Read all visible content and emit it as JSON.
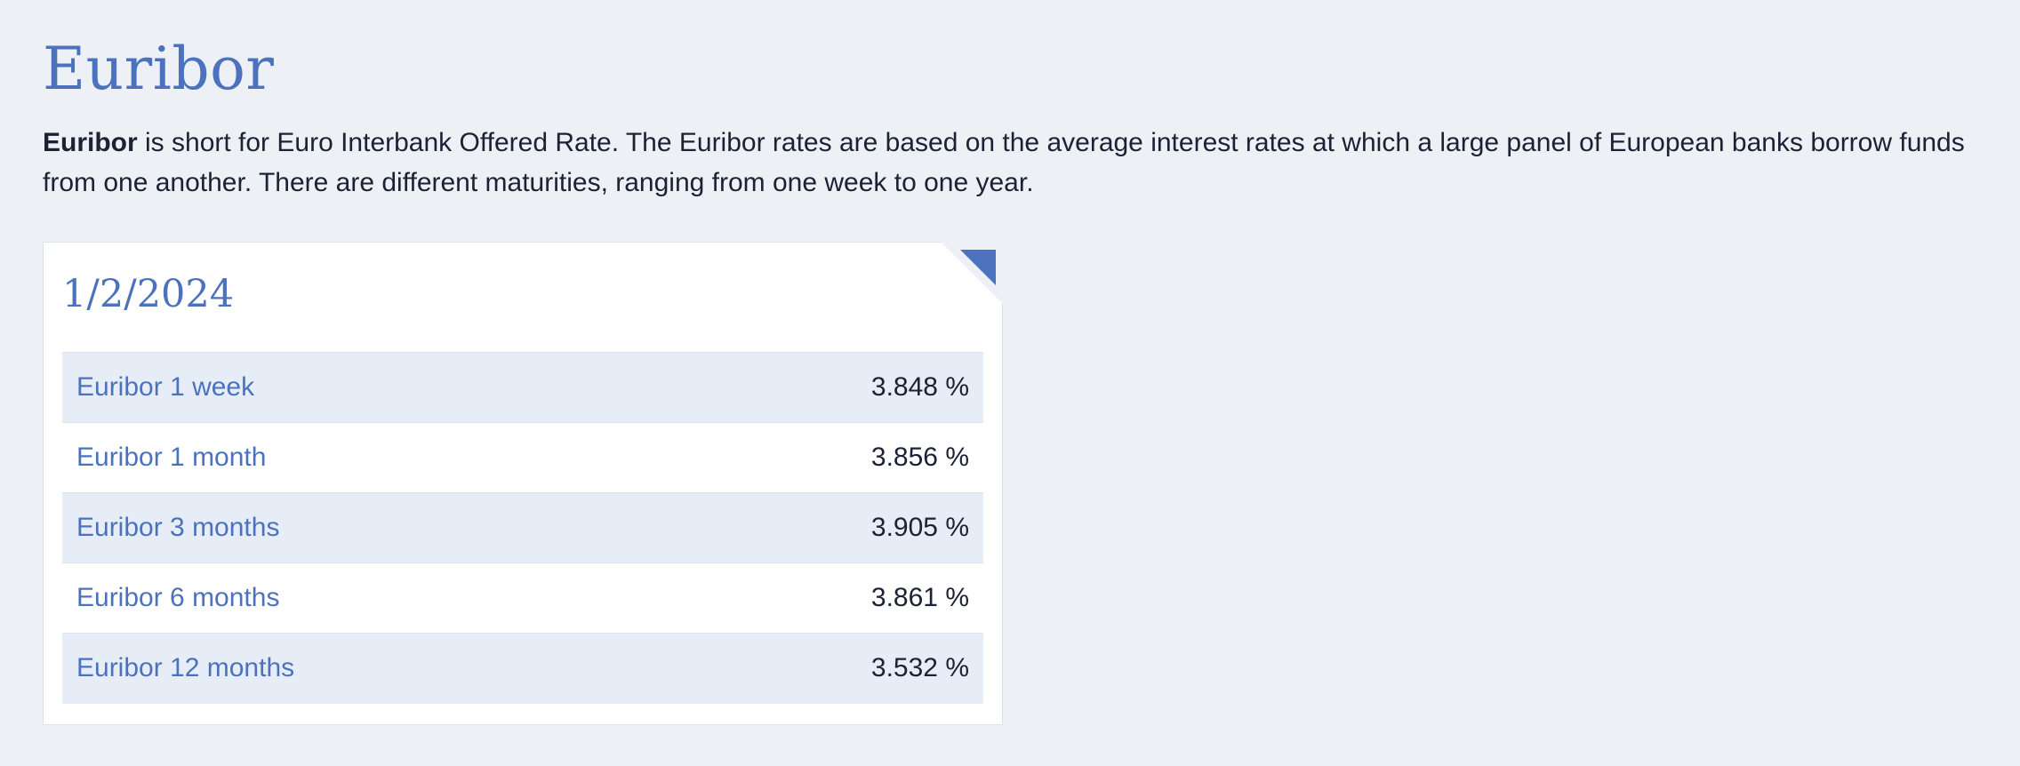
{
  "header": {
    "title": "Euribor"
  },
  "intro": {
    "bold_term": "Euribor",
    "text": " is short for Euro Interbank Offered Rate. The Euribor rates are based on the average interest rates at which a large panel of European banks borrow funds from one another. There are different maturities, ranging from one week to one year."
  },
  "card": {
    "date": "1/2/2024",
    "accent_color": "#4c72be",
    "rates": [
      {
        "name": "Euribor 1 week",
        "value": "3.848 %"
      },
      {
        "name": "Euribor 1 month",
        "value": "3.856 %"
      },
      {
        "name": "Euribor 3 months",
        "value": "3.905 %"
      },
      {
        "name": "Euribor 6 months",
        "value": "3.861 %"
      },
      {
        "name": "Euribor 12 months",
        "value": "3.532 %"
      }
    ]
  }
}
